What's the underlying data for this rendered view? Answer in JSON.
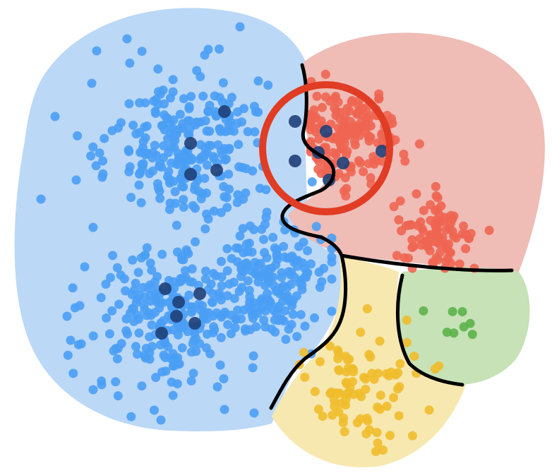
{
  "title": "",
  "colors": {
    "background": "#ffffff",
    "blue_region": "#bcd8f7",
    "blue_point": "#4a9ef5",
    "red_region": "#efbcb6",
    "red_point": "#ee6552",
    "yellow_region": "#f7e8b0",
    "yellow_point": "#f0bd2c",
    "green_region": "#c6e2b6",
    "green_point": "#5cb24a",
    "highlight_point": "#1f3f78",
    "boundary_line": "#000000",
    "focus_circle": "#e03d24"
  },
  "icons": {
    "focus_marker": "circle-outline"
  },
  "regions": [
    {
      "id": "blue",
      "label": ""
    },
    {
      "id": "red",
      "label": ""
    },
    {
      "id": "yellow",
      "label": ""
    },
    {
      "id": "green",
      "label": ""
    }
  ],
  "clusters": [
    {
      "region": "blue",
      "name": ""
    },
    {
      "region": "blue",
      "name": ""
    },
    {
      "region": "blue",
      "name": ""
    },
    {
      "region": "red",
      "name": ""
    },
    {
      "region": "red",
      "name": ""
    },
    {
      "region": "yellow",
      "name": ""
    },
    {
      "region": "green",
      "name": ""
    }
  ]
}
